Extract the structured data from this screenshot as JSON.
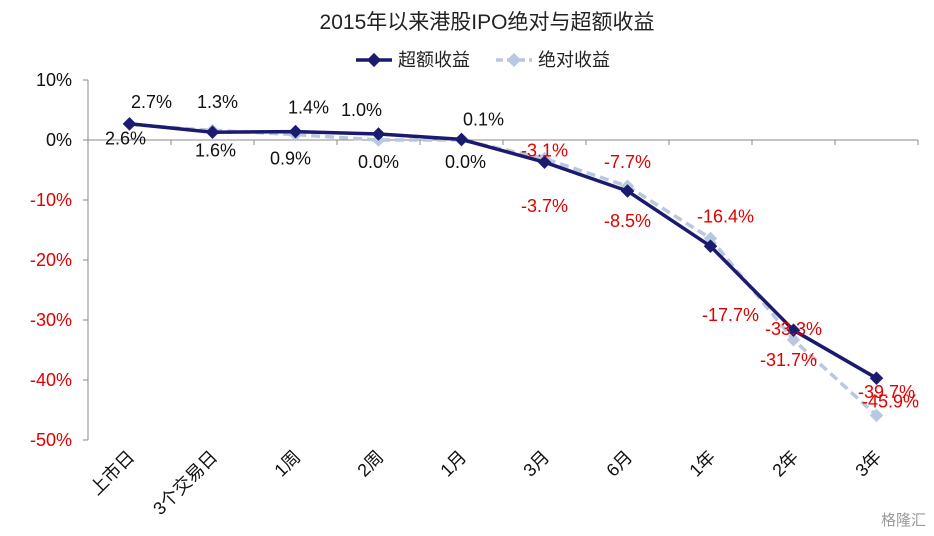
{
  "chart_data": {
    "type": "line",
    "title": "2015年以来港股IPO绝对与超额收益",
    "categories": [
      "上市日",
      "3个交易日",
      "1周",
      "2周",
      "1月",
      "3月",
      "6月",
      "1年",
      "2年",
      "3年"
    ],
    "ylim": [
      -50,
      10
    ],
    "yticks": [
      10,
      0,
      -10,
      -20,
      -30,
      -40,
      -50
    ],
    "ytick_labels": [
      "10%",
      "0%",
      "-10%",
      "-20%",
      "-30%",
      "-40%",
      "-50%"
    ],
    "grid": false,
    "legend_position": "top-center",
    "series": [
      {
        "name": "超额收益",
        "values": [
          2.7,
          1.3,
          1.4,
          1.0,
          0.1,
          -3.7,
          -8.5,
          -17.7,
          -31.7,
          -39.7
        ],
        "labels": [
          "2.7%",
          "1.3%",
          "1.4%",
          "1.0%",
          "0.1%",
          "-3.7%",
          "-8.5%",
          "-17.7%",
          "-31.7%",
          "-39.7%"
        ],
        "color": "#1a1a6e",
        "style": "solid",
        "marker": "diamond"
      },
      {
        "name": "绝对收益",
        "values": [
          2.6,
          1.6,
          0.9,
          0.0,
          0.0,
          -3.1,
          -7.7,
          -16.4,
          -33.3,
          -45.9
        ],
        "labels": [
          "2.6%",
          "1.6%",
          "0.9%",
          "0.0%",
          "0.0%",
          "-3.1%",
          "-7.7%",
          "-16.4%",
          "-33.3%",
          "-45.9%"
        ],
        "color": "#b8c8e0",
        "style": "dashed",
        "marker": "diamond"
      }
    ],
    "colors": {
      "positive_text": "#111111",
      "negative_text": "#e00000",
      "axis": "#888888"
    }
  },
  "watermark": "格隆汇"
}
